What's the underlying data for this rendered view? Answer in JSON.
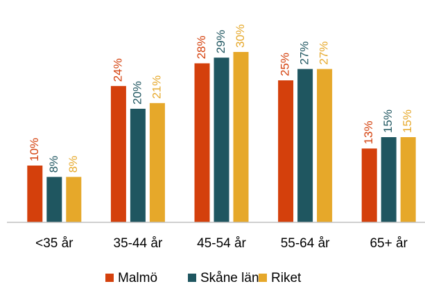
{
  "chart_data": {
    "type": "bar",
    "categories": [
      "<35 år",
      "35-44 år",
      "45-54 år",
      "55-64 år",
      "65+ år"
    ],
    "series": [
      {
        "name": "Malmö",
        "color": "#d4400c",
        "values": [
          10,
          24,
          28,
          25,
          13
        ],
        "value_labels": [
          "10%",
          "24%",
          "28%",
          "25%",
          "13%"
        ]
      },
      {
        "name": "Skåne län",
        "color": "#1f5660",
        "values": [
          8,
          20,
          29,
          27,
          15
        ],
        "value_labels": [
          "8%",
          "20%",
          "29%",
          "27%",
          "15%"
        ]
      },
      {
        "name": "Riket",
        "color": "#e6a82a",
        "values": [
          8,
          21,
          30,
          27,
          15
        ],
        "value_labels": [
          "8%",
          "21%",
          "30%",
          "27%",
          "15%"
        ]
      }
    ],
    "legend": "bottom"
  }
}
